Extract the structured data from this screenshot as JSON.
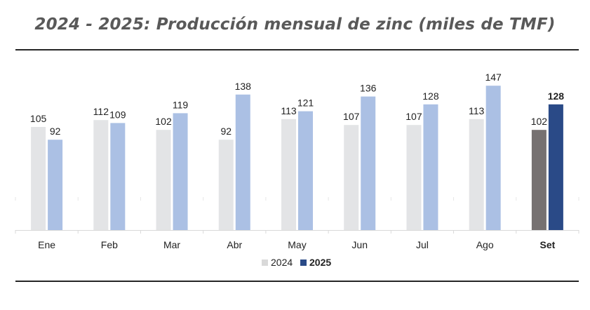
{
  "chart_data": {
    "type": "bar",
    "title": "2024 - 2025: Producción mensual de zinc (miles de TMF)",
    "xlabel": "",
    "ylabel": "",
    "categories": [
      "Ene",
      "Feb",
      "Mar",
      "Abr",
      "May",
      "Jun",
      "Jul",
      "Ago",
      "Set"
    ],
    "highlight_category": "Set",
    "series": [
      {
        "name": "2024",
        "values": [
          105,
          112,
          102,
          92,
          113,
          107,
          107,
          113,
          102
        ],
        "color": "#e3e4e6",
        "highlight_color": "#767171"
      },
      {
        "name": "2025",
        "values": [
          92,
          109,
          119,
          138,
          121,
          136,
          128,
          147,
          128
        ],
        "color": "#abc0e4",
        "highlight_color": "#2a4a87"
      }
    ],
    "ylim": [
      0,
      160
    ],
    "grid": false,
    "legend": "bottom-center",
    "data_labels": true
  }
}
